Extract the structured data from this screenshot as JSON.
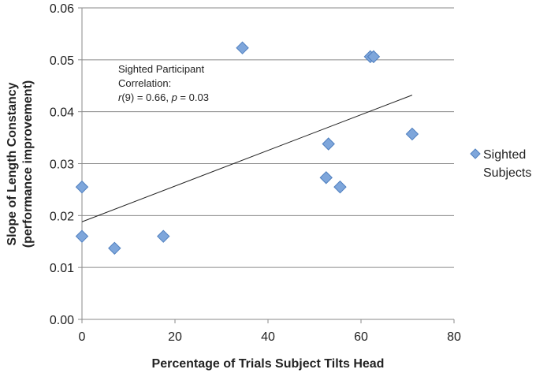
{
  "chart_data": {
    "type": "scatter",
    "title": "",
    "xlabel": "Percentage of Trials Subject Tilts Head",
    "ylabel_line1": "Slope of Length Constancy",
    "ylabel_line2": "(performance improvement)",
    "xlim": [
      0,
      80
    ],
    "ylim": [
      0,
      0.06
    ],
    "x_ticks": [
      0,
      20,
      40,
      60,
      80
    ],
    "y_ticks": [
      0.0,
      0.01,
      0.02,
      0.03,
      0.04,
      0.05,
      0.06
    ],
    "y_tick_labels": [
      "0.00",
      "0.01",
      "0.02",
      "0.03",
      "0.04",
      "0.05",
      "0.06"
    ],
    "grid": "horizontal",
    "marker_color": "#7EA6DB",
    "marker_edge_color": "#4F7FBF",
    "series": [
      {
        "name_line1": "Sighted",
        "name_line2": "Subjects",
        "points": [
          {
            "x": 0,
            "y": 0.0255
          },
          {
            "x": 0,
            "y": 0.016
          },
          {
            "x": 7,
            "y": 0.0137
          },
          {
            "x": 17.5,
            "y": 0.016
          },
          {
            "x": 34.5,
            "y": 0.0523
          },
          {
            "x": 52.5,
            "y": 0.0273
          },
          {
            "x": 53,
            "y": 0.0338
          },
          {
            "x": 55.5,
            "y": 0.0255
          },
          {
            "x": 62,
            "y": 0.0506
          },
          {
            "x": 62.7,
            "y": 0.0506
          },
          {
            "x": 71,
            "y": 0.0357
          }
        ]
      }
    ],
    "trendline": {
      "x0": 0,
      "y0": 0.0188,
      "x1": 71,
      "y1": 0.0432
    },
    "annotation": {
      "line1": "Sighted Participant",
      "line2": "Correlation:",
      "line3_r": "r",
      "line3_rest": "(9) = 0.66, ",
      "line3_p": "p",
      "line3_end": " = 0.03"
    },
    "legend_position": "right"
  }
}
